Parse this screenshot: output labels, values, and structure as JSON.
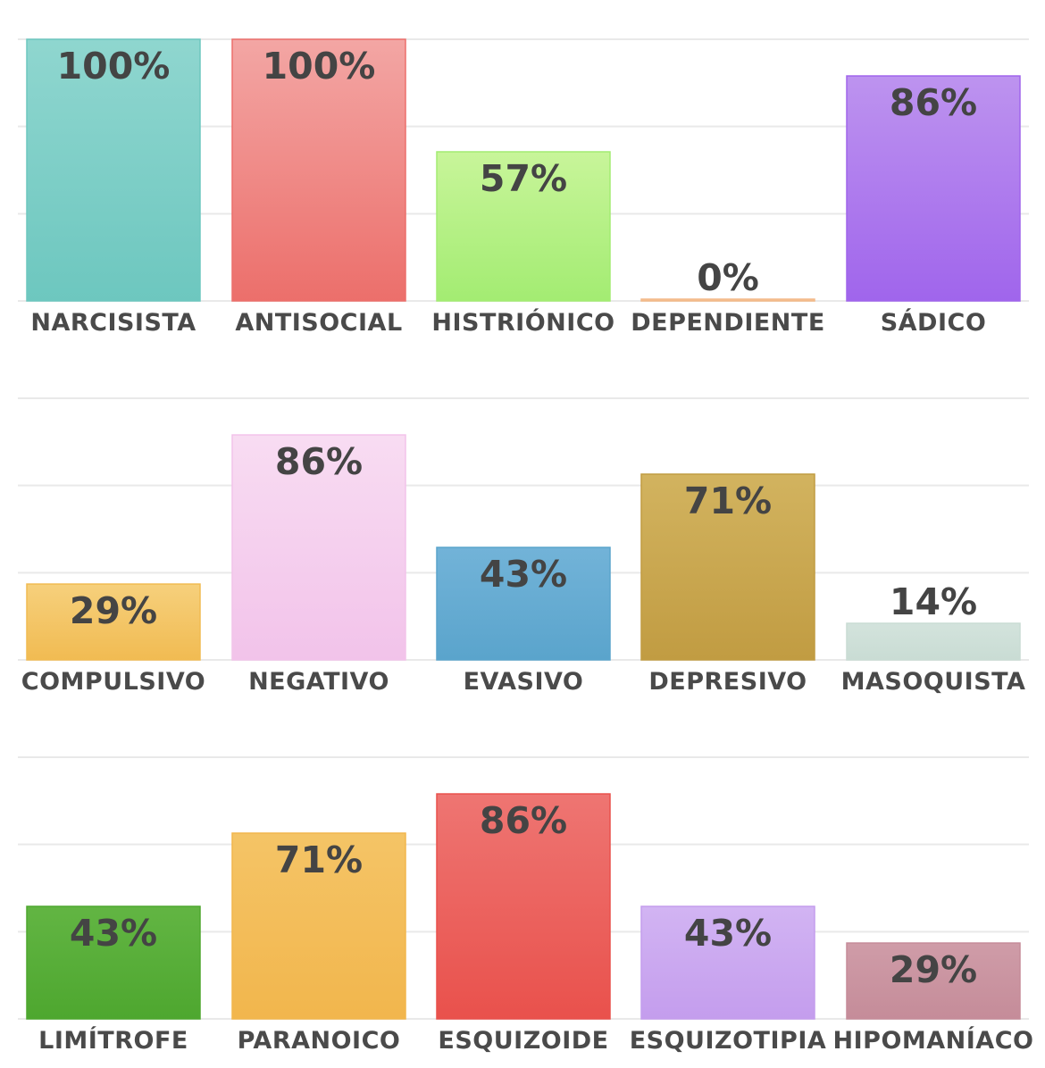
{
  "chart_data": [
    {
      "type": "bar",
      "ylim": [
        0,
        100
      ],
      "grid": true,
      "categories": [
        "NARCISISTA",
        "ANTISOCIAL",
        "HISTRIÓNICO",
        "DEPENDIENTE",
        "SÁDICO"
      ],
      "values": [
        100,
        100,
        57,
        0,
        86
      ],
      "value_labels": [
        "100%",
        "100%",
        "57%",
        "0%",
        "86%"
      ],
      "colors": [
        [
          "#8fd6cf",
          "#6dc7bf"
        ],
        [
          "#f3a6a4",
          "#ec6f6b"
        ],
        [
          "#c8f59a",
          "#a3ec72"
        ],
        [
          "#f8cfa6",
          "#f3b988"
        ],
        [
          "#bd93ef",
          "#a065ec"
        ]
      ]
    },
    {
      "type": "bar",
      "ylim": [
        0,
        100
      ],
      "grid": true,
      "categories": [
        "COMPULSIVO",
        "NEGATIVO",
        "EVASIVO",
        "DEPRESIVO",
        "MASOQUISTA"
      ],
      "values": [
        29,
        86,
        43,
        71,
        14
      ],
      "value_labels": [
        "29%",
        "86%",
        "43%",
        "71%",
        "14%"
      ],
      "colors": [
        [
          "#f6d07c",
          "#f1bb52"
        ],
        [
          "#f8dcf2",
          "#f2c3ea"
        ],
        [
          "#72b3d8",
          "#5aa4cc"
        ],
        [
          "#d2b35f",
          "#c19c42"
        ],
        [
          "#d3e3dc",
          "#c9dcd4"
        ]
      ]
    },
    {
      "type": "bar",
      "ylim": [
        0,
        100
      ],
      "grid": true,
      "categories": [
        "LIMÍTROFE",
        "PARANOICO",
        "ESQUIZOIDE",
        "ESQUIZOTIPIA",
        "HIPOMANÍACO"
      ],
      "values": [
        43,
        71,
        86,
        43,
        29
      ],
      "value_labels": [
        "43%",
        "71%",
        "86%",
        "43%",
        "29%"
      ],
      "colors": [
        [
          "#62b543",
          "#4ea72f"
        ],
        [
          "#f4c466",
          "#f2b64d"
        ],
        [
          "#ee7572",
          "#e9514c"
        ],
        [
          "#d2b4f3",
          "#c49ded"
        ],
        [
          "#cf9ca8",
          "#c58c99"
        ]
      ]
    }
  ]
}
